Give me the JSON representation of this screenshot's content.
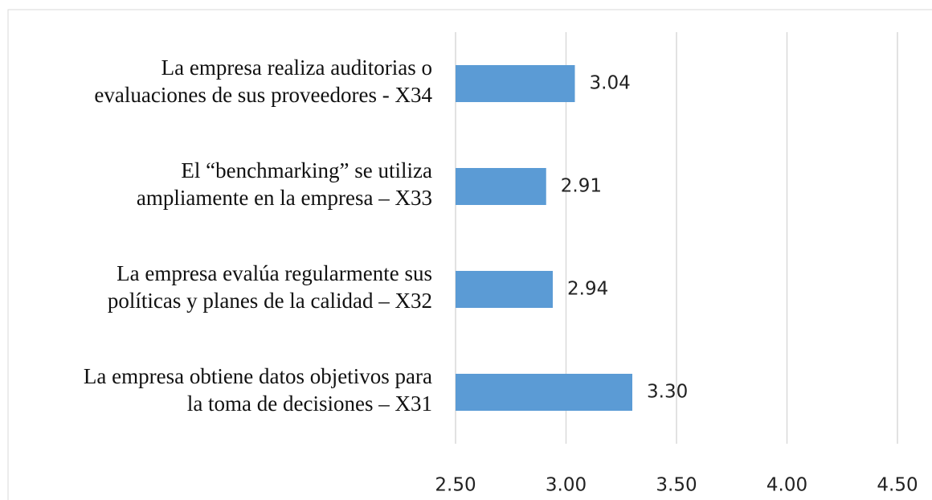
{
  "chart_data": {
    "type": "bar",
    "orientation": "horizontal",
    "categories": [
      [
        "La empresa realiza auditorias o",
        "evaluaciones de sus proveedores - X34"
      ],
      [
        "El “benchmarking”  se utiliza",
        "ampliamente  en la empresa – X33"
      ],
      [
        "La empresa evalúa regularmente  sus",
        "políticas  y planes de la calidad – X32"
      ],
      [
        "La empresa obtiene datos objetivos  para",
        "la toma de decisiones  – X31"
      ]
    ],
    "values": [
      3.04,
      2.91,
      2.94,
      3.3
    ],
    "value_labels": [
      "3.04",
      "2.91",
      "2.94",
      "3.30"
    ],
    "color": "#5b9bd5",
    "xlim": [
      2.5,
      4.5
    ],
    "xticks": [
      {
        "value": 2.5,
        "label": "2.50"
      },
      {
        "value": 3,
        "label": "3.00"
      },
      {
        "value": 3.5,
        "label": "3.50"
      },
      {
        "value": 4,
        "label": "4.00"
      },
      {
        "value": 4.5,
        "label": "4.50"
      }
    ],
    "grid": true
  }
}
